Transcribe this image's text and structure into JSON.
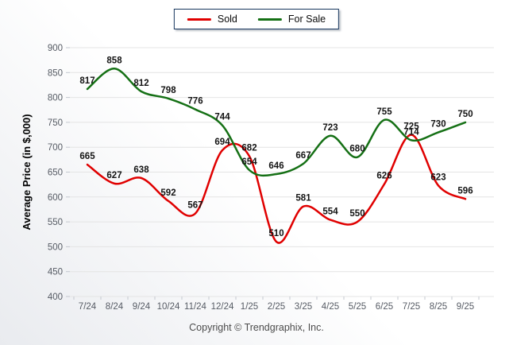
{
  "chart_data": {
    "type": "line",
    "title": "",
    "xlabel": "",
    "ylabel": "Average Price (in $,000)",
    "categories": [
      "7/24",
      "8/24",
      "9/24",
      "10/24",
      "11/24",
      "12/24",
      "1/25",
      "2/25",
      "3/25",
      "4/25",
      "5/25",
      "6/25",
      "7/25",
      "8/25",
      "9/25"
    ],
    "series": [
      {
        "name": "Sold",
        "color": "#e00000",
        "values": [
          665,
          627,
          638,
          592,
          567,
          694,
          682,
          510,
          581,
          554,
          550,
          626,
          725,
          623,
          596
        ]
      },
      {
        "name": "For Sale",
        "color": "#157015",
        "values": [
          817,
          858,
          812,
          798,
          776,
          744,
          654,
          646,
          667,
          723,
          680,
          755,
          714,
          730,
          750
        ]
      }
    ],
    "ylim": [
      400,
      900
    ],
    "ytick_step": 50,
    "grid": true,
    "legend_position": "top",
    "data_labels": true
  },
  "colors": {
    "grid": "#e4e4e4",
    "tick": "#c4c8cf",
    "axis_text": "#565b64",
    "data_label_text": "#141414",
    "ylabel_text": "#000000"
  },
  "footer": {
    "copyright": "Copyright © Trendgraphix, Inc."
  }
}
